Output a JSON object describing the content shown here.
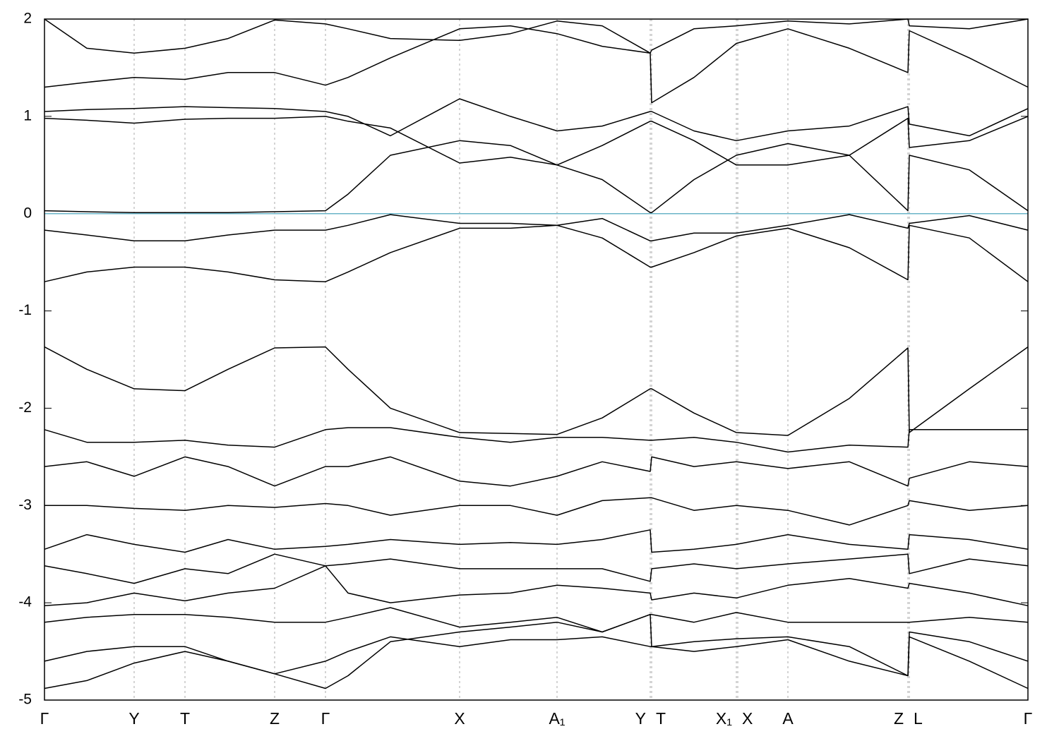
{
  "chart_data": {
    "type": "line",
    "x": [
      0,
      60,
      127,
      199,
      260,
      326,
      398,
      430,
      490,
      588,
      660,
      726,
      790,
      858,
      860,
      920,
      980,
      1053,
      1140,
      1223,
      1225,
      1310,
      1393
    ],
    "xlim": [
      0,
      1393
    ],
    "xticks": [
      {
        "value": 0,
        "label": "Γ"
      },
      {
        "value": 127,
        "label": "Y"
      },
      {
        "value": 199,
        "label": "T"
      },
      {
        "value": 326,
        "label": "Z"
      },
      {
        "value": 398,
        "label": "Γ"
      },
      {
        "value": 588,
        "label": "X"
      },
      {
        "value": 726,
        "label": "A₁"
      },
      {
        "value": 858,
        "label": "Y"
      },
      {
        "value": 860,
        "label": "T"
      },
      {
        "value": 980,
        "label": "X₁"
      },
      {
        "value": 982,
        "label": "X"
      },
      {
        "value": 1053,
        "label": "A"
      },
      {
        "value": 1223,
        "label": "Z"
      },
      {
        "value": 1225,
        "label": "L"
      },
      {
        "value": 1393,
        "label": "Γ"
      }
    ],
    "ylim": [
      -5,
      2
    ],
    "yticks": [
      -5,
      -4,
      -3,
      -2,
      -1,
      0,
      1,
      2
    ],
    "xgrid": true,
    "hlines": [
      {
        "value": 0,
        "color": "#6ab4c8"
      }
    ],
    "series": [
      {
        "color": "#000000",
        "values": [
          -0.17,
          -0.22,
          -0.28,
          -0.28,
          -0.22,
          -0.17,
          -0.17,
          -0.12,
          -0.01,
          -0.1,
          -0.1,
          -0.12,
          -0.05,
          -0.28,
          -0.28,
          -0.2,
          -0.2,
          -0.12,
          -0.01,
          -0.15,
          -0.1,
          -0.02,
          -0.17
        ]
      },
      {
        "color": "#000000",
        "values": [
          -0.7,
          -0.6,
          -0.55,
          -0.55,
          -0.6,
          -0.68,
          -0.7,
          -0.6,
          -0.4,
          -0.15,
          -0.15,
          -0.12,
          -0.25,
          -0.55,
          -0.55,
          -0.4,
          -0.23,
          -0.15,
          -0.35,
          -0.68,
          -0.12,
          -0.25,
          -0.7
        ]
      },
      {
        "color": "#000000",
        "values": [
          0.03,
          0.02,
          0.01,
          0.01,
          0.01,
          0.02,
          0.03,
          0.2,
          0.6,
          0.75,
          0.7,
          0.5,
          0.35,
          0.01,
          0.01,
          0.35,
          0.6,
          0.72,
          0.6,
          0.03,
          0.6,
          0.45,
          0.03
        ]
      },
      {
        "color": "#000000",
        "values": [
          0.98,
          0.96,
          0.93,
          0.97,
          0.98,
          0.98,
          1.0,
          0.95,
          0.88,
          0.52,
          0.58,
          0.5,
          0.7,
          0.95,
          0.95,
          0.75,
          0.5,
          0.5,
          0.6,
          0.98,
          0.68,
          0.75,
          1.0
        ]
      },
      {
        "color": "#000000",
        "values": [
          1.05,
          1.07,
          1.08,
          1.1,
          1.09,
          1.08,
          1.05,
          1.0,
          0.8,
          1.18,
          1.0,
          0.85,
          0.9,
          1.05,
          1.05,
          0.85,
          0.75,
          0.85,
          0.9,
          1.1,
          0.92,
          0.8,
          1.08
        ]
      },
      {
        "color": "#000000",
        "values": [
          1.3,
          1.35,
          1.4,
          1.38,
          1.45,
          1.45,
          1.32,
          1.4,
          1.6,
          1.9,
          1.93,
          1.85,
          1.72,
          1.65,
          1.14,
          1.4,
          1.75,
          1.9,
          1.7,
          1.45,
          1.88,
          1.6,
          1.3
        ]
      },
      {
        "color": "#000000",
        "values": [
          2.0,
          1.7,
          1.65,
          1.7,
          1.8,
          1.99,
          1.95,
          1.9,
          1.8,
          1.78,
          1.85,
          1.98,
          1.93,
          1.65,
          1.68,
          1.9,
          1.93,
          1.98,
          1.95,
          2.0,
          1.93,
          1.9,
          2.0
        ]
      },
      {
        "color": "#000000",
        "values": [
          -1.37,
          -1.6,
          -1.8,
          -1.82,
          -1.6,
          -1.38,
          -1.37,
          -1.6,
          -2.0,
          -2.25,
          -2.26,
          -2.27,
          -2.1,
          -1.8,
          -1.8,
          -2.05,
          -2.25,
          -2.28,
          -1.9,
          -1.38,
          -2.25,
          -1.8,
          -1.37
        ]
      },
      {
        "color": "#000000",
        "values": [
          -2.22,
          -2.35,
          -2.35,
          -2.33,
          -2.38,
          -2.4,
          -2.22,
          -2.2,
          -2.2,
          -2.3,
          -2.35,
          -2.3,
          -2.3,
          -2.33,
          -2.33,
          -2.3,
          -2.35,
          -2.45,
          -2.38,
          -2.4,
          -2.22,
          -2.22,
          -2.22
        ]
      },
      {
        "color": "#000000",
        "values": [
          -2.6,
          -2.55,
          -2.7,
          -2.5,
          -2.6,
          -2.8,
          -2.6,
          -2.6,
          -2.5,
          -2.75,
          -2.8,
          -2.7,
          -2.55,
          -2.65,
          -2.5,
          -2.6,
          -2.55,
          -2.62,
          -2.55,
          -2.8,
          -2.72,
          -2.55,
          -2.6
        ]
      },
      {
        "color": "#000000",
        "values": [
          -3.0,
          -3.0,
          -3.03,
          -3.05,
          -3.0,
          -3.02,
          -2.98,
          -3.0,
          -3.1,
          -3.0,
          -3.0,
          -3.1,
          -2.95,
          -2.92,
          -2.92,
          -3.05,
          -3.0,
          -3.05,
          -3.2,
          -3.0,
          -2.95,
          -3.05,
          -3.0
        ]
      },
      {
        "color": "#000000",
        "values": [
          -3.45,
          -3.3,
          -3.4,
          -3.48,
          -3.35,
          -3.45,
          -3.42,
          -3.4,
          -3.35,
          -3.4,
          -3.38,
          -3.4,
          -3.35,
          -3.25,
          -3.48,
          -3.45,
          -3.4,
          -3.3,
          -3.4,
          -3.45,
          -3.3,
          -3.35,
          -3.45
        ]
      },
      {
        "color": "#000000",
        "values": [
          -3.62,
          -3.7,
          -3.8,
          -3.65,
          -3.7,
          -3.5,
          -3.62,
          -3.6,
          -3.55,
          -3.65,
          -3.65,
          -3.65,
          -3.65,
          -3.78,
          -3.65,
          -3.6,
          -3.65,
          -3.6,
          -3.55,
          -3.5,
          -3.7,
          -3.55,
          -3.62
        ]
      },
      {
        "color": "#000000",
        "values": [
          -4.03,
          -4.0,
          -3.9,
          -3.98,
          -3.9,
          -3.85,
          -3.62,
          -3.9,
          -4.0,
          -3.92,
          -3.9,
          -3.82,
          -3.85,
          -3.9,
          -3.97,
          -3.9,
          -3.95,
          -3.82,
          -3.75,
          -3.85,
          -3.8,
          -3.9,
          -4.03
        ]
      },
      {
        "color": "#000000",
        "values": [
          -4.2,
          -4.15,
          -4.12,
          -4.12,
          -4.15,
          -4.2,
          -4.2,
          -4.15,
          -4.05,
          -4.25,
          -4.2,
          -4.15,
          -4.3,
          -4.12,
          -4.12,
          -4.2,
          -4.1,
          -4.2,
          -4.2,
          -4.2,
          -4.2,
          -4.15,
          -4.2
        ]
      },
      {
        "color": "#000000",
        "values": [
          -4.6,
          -4.5,
          -4.45,
          -4.45,
          -4.6,
          -4.73,
          -4.6,
          -4.5,
          -4.35,
          -4.45,
          -4.38,
          -4.38,
          -4.35,
          -4.45,
          -4.45,
          -4.4,
          -4.37,
          -4.35,
          -4.45,
          -4.75,
          -4.3,
          -4.4,
          -4.6
        ]
      },
      {
        "color": "#000000",
        "values": [
          -4.88,
          -4.8,
          -4.62,
          -4.5,
          -4.6,
          -4.73,
          -4.88,
          -4.75,
          -4.4,
          -4.3,
          -4.25,
          -4.2,
          -4.3,
          -4.12,
          -4.45,
          -4.5,
          -4.45,
          -4.38,
          -4.6,
          -4.75,
          -4.35,
          -4.6,
          -4.88
        ]
      }
    ]
  }
}
